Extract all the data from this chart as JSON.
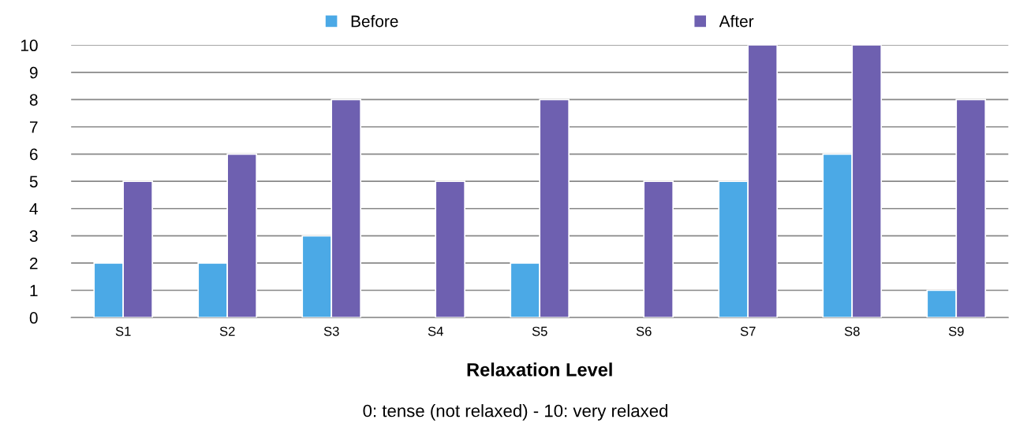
{
  "chart_data": {
    "type": "bar",
    "xlabel": "Relaxation Level",
    "annotations": [
      "0: tense (not relaxed) - 10: very relaxed"
    ],
    "categories": [
      "S1",
      "S2",
      "S3",
      "S4",
      "S5",
      "S6",
      "S7",
      "S8",
      "S9"
    ],
    "series": [
      {
        "name": "Before",
        "color": "#4ba9e6",
        "values": [
          2,
          2,
          3,
          null,
          2,
          null,
          5,
          6,
          1
        ]
      },
      {
        "name": "After",
        "color": "#6e60b0",
        "values": [
          5,
          6,
          8,
          5,
          8,
          5,
          10,
          10,
          8
        ]
      }
    ],
    "ylim": [
      0,
      10
    ],
    "yticks": [
      0,
      1,
      2,
      3,
      4,
      5,
      6,
      7,
      8,
      9,
      10
    ],
    "grid": "y",
    "legend": "top"
  }
}
